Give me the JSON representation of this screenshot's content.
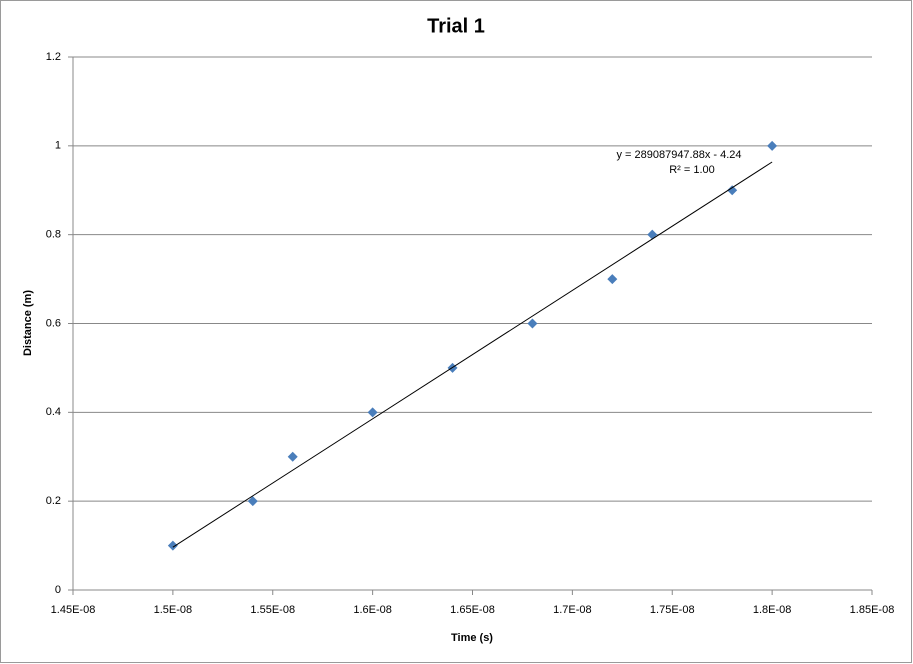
{
  "chart_data": {
    "type": "scatter",
    "title": "Trial 1",
    "x_label": "Time (s)",
    "y_label": "Distance (m)",
    "series": [
      {
        "name": "Trial 1",
        "color": "#4a7ebb",
        "x": [
          1.5e-08,
          1.54e-08,
          1.56e-08,
          1.6e-08,
          1.64e-08,
          1.68e-08,
          1.72e-08,
          1.74e-08,
          1.78e-08,
          1.8e-08
        ],
        "values": [
          0.1,
          0.2,
          0.3,
          0.4,
          0.5,
          0.6,
          0.7,
          0.8,
          0.9,
          1.0
        ]
      }
    ],
    "trendline": {
      "slope": 289087947.88,
      "intercept": -4.24,
      "color": "#000000",
      "equation": "y = 289087947.88x - 4.24",
      "r_squared": "R² = 1.00"
    },
    "xlim": [
      1.45e-08,
      1.85e-08
    ],
    "xticks": [
      {
        "value": 1.45e-08,
        "label": "1.45E-08"
      },
      {
        "value": 1.5e-08,
        "label": "1.5E-08"
      },
      {
        "value": 1.55e-08,
        "label": "1.55E-08"
      },
      {
        "value": 1.6e-08,
        "label": "1.6E-08"
      },
      {
        "value": 1.65e-08,
        "label": "1.65E-08"
      },
      {
        "value": 1.7e-08,
        "label": "1.7E-08"
      },
      {
        "value": 1.75e-08,
        "label": "1.75E-08"
      },
      {
        "value": 1.8e-08,
        "label": "1.8E-08"
      },
      {
        "value": 1.85e-08,
        "label": "1.85E-08"
      }
    ],
    "ylim": [
      0,
      1.2
    ],
    "yticks": [
      0,
      0.2,
      0.4,
      0.6,
      0.8,
      1,
      1.2
    ],
    "grid": true
  }
}
